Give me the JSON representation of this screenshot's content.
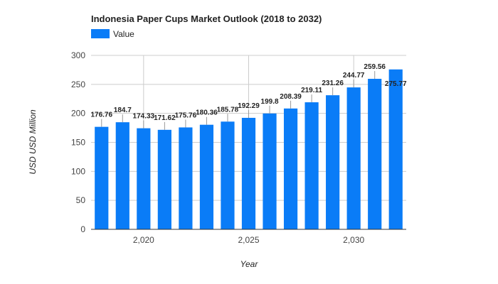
{
  "chart_data": {
    "type": "bar",
    "title": "Indonesia Paper Cups Market Outlook (2018 to 2032)",
    "xlabel": "Year",
    "ylabel": "USD USD Million",
    "legend": {
      "position": "top-left",
      "entries": [
        "Value"
      ]
    },
    "x": [
      2018,
      2019,
      2020,
      2021,
      2022,
      2023,
      2024,
      2025,
      2026,
      2027,
      2028,
      2029,
      2030,
      2031,
      2032
    ],
    "series": [
      {
        "name": "Value",
        "color": "#0a7cf7",
        "values": [
          176.76,
          184.7,
          174.33,
          171.62,
          175.76,
          180.36,
          185.78,
          192.29,
          199.8,
          208.39,
          219.11,
          231.26,
          244.77,
          259.56,
          275.77
        ]
      }
    ],
    "data_labels": [
      "176.76",
      "184.7",
      "174.33",
      "171.62",
      "175.76",
      "180.36",
      "185.78",
      "192.29",
      "199.8",
      "208.39",
      "219.11",
      "231.26",
      "244.77",
      "259.56",
      "275.77"
    ],
    "ylim": [
      0,
      300
    ],
    "y_ticks": [
      0,
      50,
      100,
      150,
      200,
      250,
      300
    ],
    "y_tick_labels": [
      "0",
      "50",
      "100",
      "150",
      "200",
      "250",
      "300"
    ],
    "x_ticks": [
      2020,
      2025,
      2030
    ],
    "x_tick_labels": [
      "2,020",
      "2,025",
      "2,030"
    ],
    "grid": true
  }
}
